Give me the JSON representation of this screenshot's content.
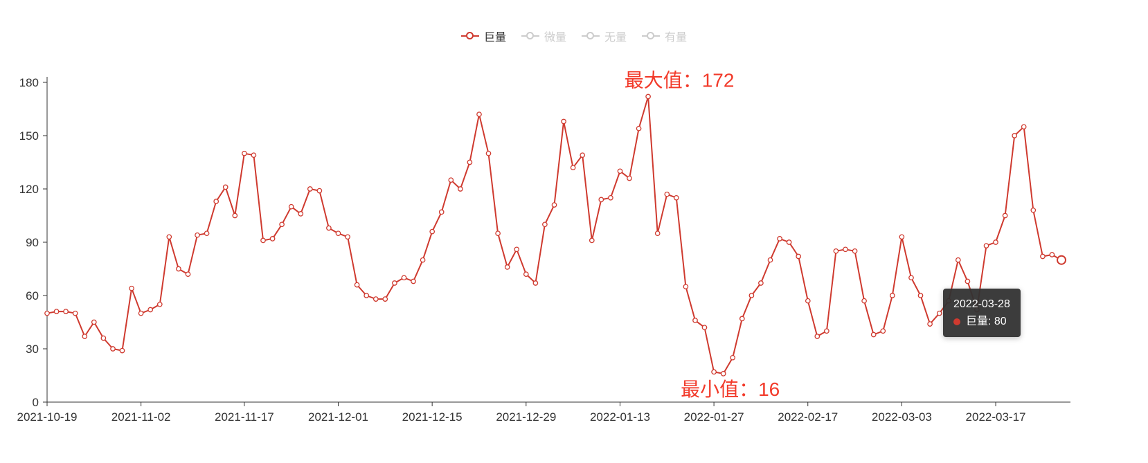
{
  "colors": {
    "series": "#cf3a2f",
    "annotation": "#f23a2a",
    "inactive": "#cccccc",
    "active_text": "#333333",
    "axis": "#333333",
    "axis_label": "#333333",
    "tooltip_bg": "rgba(50,50,50,0.95)"
  },
  "legend": {
    "items": [
      {
        "label": "巨量",
        "active": true
      },
      {
        "label": "微量",
        "active": false
      },
      {
        "label": "无量",
        "active": false
      },
      {
        "label": "有量",
        "active": false
      }
    ]
  },
  "tooltip": {
    "date": "2022-03-28",
    "label": "巨量: 80"
  },
  "chart_data": {
    "type": "line",
    "title": "",
    "xlabel": "",
    "ylabel": "",
    "series_name": "巨量",
    "grid": false,
    "legend_position": "top-center",
    "ylim": [
      0,
      180
    ],
    "y_ticks": [
      0,
      30,
      60,
      90,
      120,
      150,
      180
    ],
    "x_tick_labels": [
      "2021-10-19",
      "2021-11-02",
      "2021-11-17",
      "2021-12-01",
      "2021-12-15",
      "2021-12-29",
      "2022-01-13",
      "2022-01-27",
      "2022-02-17",
      "2022-03-03",
      "2022-03-17"
    ],
    "x": [
      "2021-10-19",
      "2021-10-20",
      "2021-10-21",
      "2021-10-22",
      "2021-10-25",
      "2021-10-26",
      "2021-10-27",
      "2021-10-28",
      "2021-10-29",
      "2021-11-01",
      "2021-11-02",
      "2021-11-03",
      "2021-11-04",
      "2021-11-05",
      "2021-11-08",
      "2021-11-09",
      "2021-11-10",
      "2021-11-11",
      "2021-11-12",
      "2021-11-15",
      "2021-11-16",
      "2021-11-17",
      "2021-11-18",
      "2021-11-19",
      "2021-11-22",
      "2021-11-23",
      "2021-11-24",
      "2021-11-25",
      "2021-11-26",
      "2021-11-29",
      "2021-11-30",
      "2021-12-01",
      "2021-12-02",
      "2021-12-03",
      "2021-12-06",
      "2021-12-07",
      "2021-12-08",
      "2021-12-09",
      "2021-12-10",
      "2021-12-13",
      "2021-12-14",
      "2021-12-15",
      "2021-12-16",
      "2021-12-17",
      "2021-12-20",
      "2021-12-21",
      "2021-12-22",
      "2021-12-23",
      "2021-12-24",
      "2021-12-27",
      "2021-12-28",
      "2021-12-29",
      "2021-12-30",
      "2021-12-31",
      "2022-01-04",
      "2022-01-05",
      "2022-01-06",
      "2022-01-07",
      "2022-01-10",
      "2022-01-11",
      "2022-01-12",
      "2022-01-13",
      "2022-01-14",
      "2022-01-17",
      "2022-01-18",
      "2022-01-19",
      "2022-01-20",
      "2022-01-21",
      "2022-01-24",
      "2022-01-25",
      "2022-01-26",
      "2022-01-27",
      "2022-01-28",
      "2022-02-07",
      "2022-02-08",
      "2022-02-09",
      "2022-02-10",
      "2022-02-11",
      "2022-02-14",
      "2022-02-15",
      "2022-02-16",
      "2022-02-17",
      "2022-02-18",
      "2022-02-21",
      "2022-02-22",
      "2022-02-23",
      "2022-02-24",
      "2022-02-25",
      "2022-02-28",
      "2022-03-01",
      "2022-03-02",
      "2022-03-03",
      "2022-03-04",
      "2022-03-07",
      "2022-03-08",
      "2022-03-09",
      "2022-03-10",
      "2022-03-11",
      "2022-03-14",
      "2022-03-15",
      "2022-03-16",
      "2022-03-17",
      "2022-03-18",
      "2022-03-21",
      "2022-03-22",
      "2022-03-23",
      "2022-03-24",
      "2022-03-25",
      "2022-03-28"
    ],
    "values": [
      50,
      51,
      51,
      50,
      37,
      45,
      36,
      30,
      29,
      64,
      50,
      52,
      55,
      93,
      75,
      72,
      94,
      95,
      113,
      121,
      105,
      140,
      139,
      91,
      92,
      100,
      110,
      106,
      120,
      119,
      98,
      95,
      93,
      66,
      60,
      58,
      58,
      67,
      70,
      68,
      80,
      96,
      107,
      125,
      120,
      135,
      162,
      140,
      95,
      76,
      86,
      72,
      67,
      100,
      111,
      158,
      132,
      139,
      91,
      114,
      115,
      130,
      126,
      154,
      172,
      95,
      117,
      115,
      65,
      46,
      42,
      17,
      16,
      25,
      47,
      60,
      67,
      80,
      92,
      90,
      82,
      57,
      37,
      40,
      85,
      86,
      85,
      57,
      38,
      40,
      60,
      93,
      70,
      60,
      44,
      50,
      57,
      80,
      68,
      52,
      88,
      90,
      105,
      150,
      155,
      108,
      82,
      83,
      80
    ],
    "annotations": {
      "max_label": "最大值：172",
      "max_value": 172,
      "min_label": "最小值：16",
      "min_value": 16
    }
  }
}
